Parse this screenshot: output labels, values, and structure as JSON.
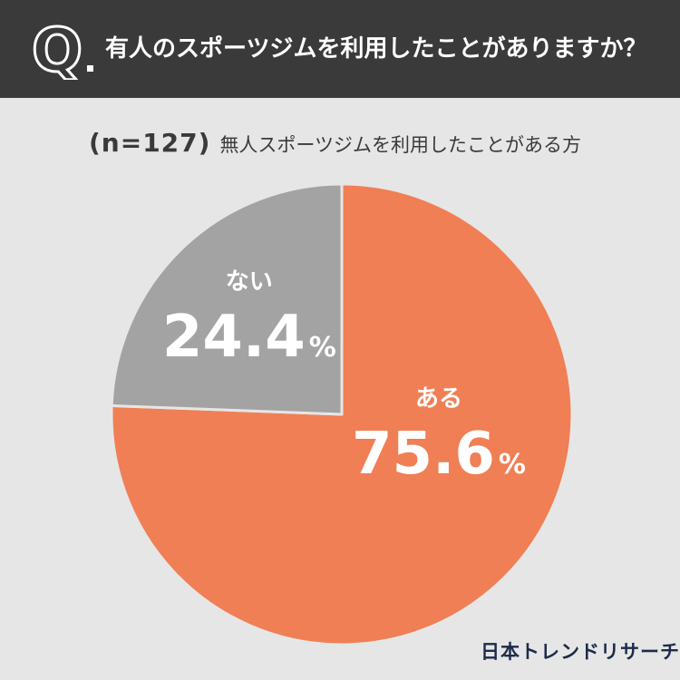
{
  "question": {
    "mark": "Q",
    "text": "有人のスポーツジムを利用したことがありますか？"
  },
  "subtitle": {
    "sample": "(n=127)",
    "description": "無人スポーツジムを利用したことがある方"
  },
  "chart_data": {
    "type": "pie",
    "unit": "%",
    "slices": [
      {
        "label": "ある",
        "value": 75.6,
        "color": "#f07f55"
      },
      {
        "label": "ない",
        "value": 24.4,
        "color": "#a3a3a3"
      }
    ]
  },
  "logo": {
    "text": "日本トレンドリサーチ"
  },
  "colors": {
    "header": "#3a3a3a",
    "background": "#e6e6e6",
    "label": "#ffffff"
  }
}
